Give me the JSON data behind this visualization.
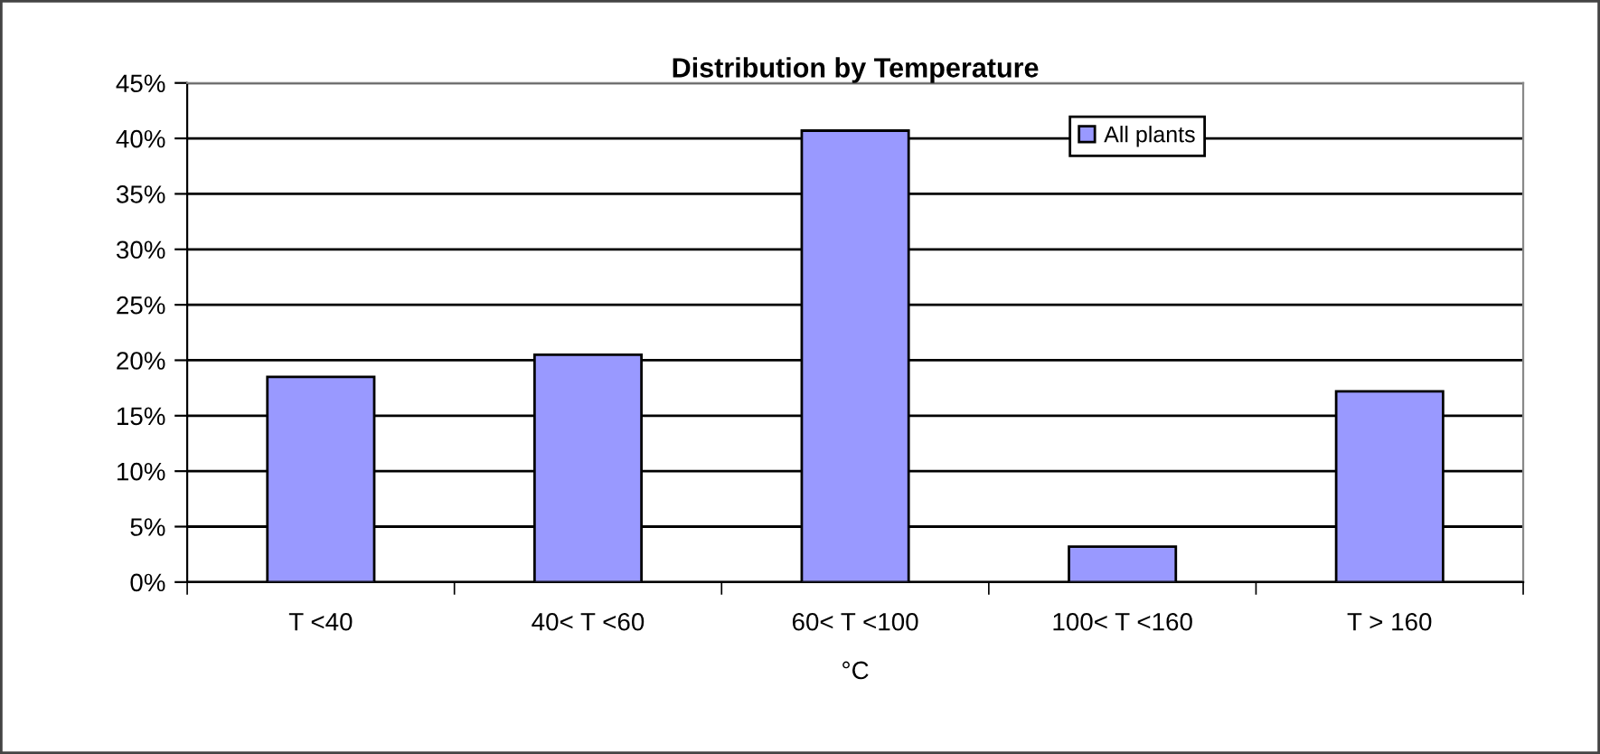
{
  "chart_data": {
    "type": "bar",
    "title": "Distribution by Temperature",
    "xlabel": "°C",
    "categories": [
      "T <40",
      "40< T <60",
      "60< T <100",
      "100< T <160",
      "T > 160"
    ],
    "series": [
      {
        "name": "All plants",
        "color": "#9999ff",
        "values": [
          18.5,
          20.5,
          40.7,
          3.2,
          17.2
        ]
      }
    ],
    "ylim": [
      0,
      45
    ],
    "yticks": [
      {
        "value": 0,
        "label": "0%"
      },
      {
        "value": 5,
        "label": "5%"
      },
      {
        "value": 10,
        "label": "10%"
      },
      {
        "value": 15,
        "label": "15%"
      },
      {
        "value": 20,
        "label": "20%"
      },
      {
        "value": 25,
        "label": "25%"
      },
      {
        "value": 30,
        "label": "30%"
      },
      {
        "value": 35,
        "label": "35%"
      },
      {
        "value": 40,
        "label": "40%"
      },
      {
        "value": 45,
        "label": "45%"
      }
    ],
    "grid": "y",
    "legend": "top right"
  }
}
